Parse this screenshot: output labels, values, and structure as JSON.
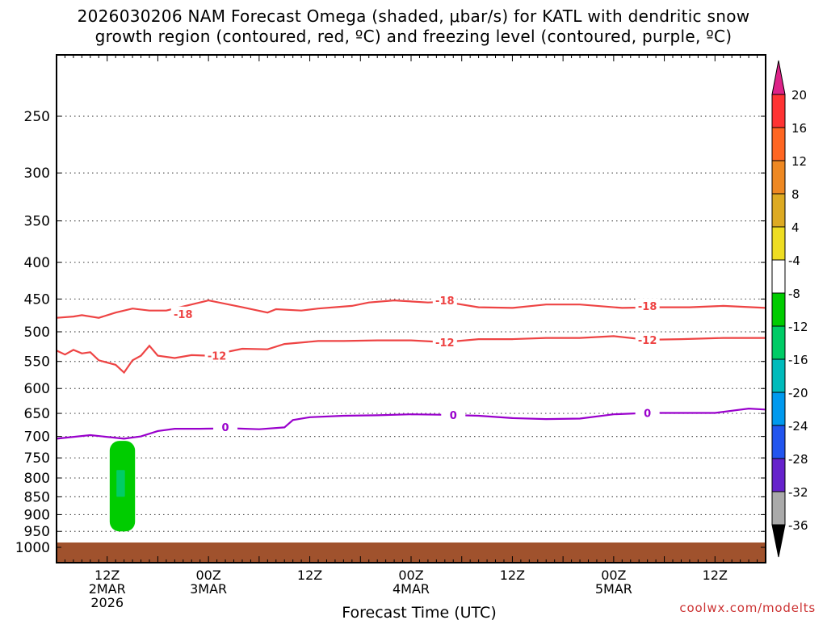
{
  "title_line1": "2026030206 NAM Forecast Omega (shaded, μbar/s) for KATL with dendritic snow",
  "title_line2": "growth region (contoured, red, ºC) and freezing level (contoured, purple, ºC)",
  "credit": "coolwx.com/modelts",
  "chart_data": {
    "type": "time-height cross section",
    "title": "2026030206 NAM Forecast Omega (shaded, μbar/s) for KATL with dendritic snow growth region (contoured, red, ºC) and freezing level (contoured, purple, ºC)",
    "xlabel": "Forecast Time (UTC)",
    "ylabel": "",
    "x_units": "forecast hour",
    "xlim": [
      0,
      84
    ],
    "ylim": [
      1020,
      200
    ],
    "y_scale": "log-pressure (mb)",
    "y_ticks": [
      250,
      300,
      350,
      400,
      450,
      500,
      550,
      600,
      650,
      700,
      750,
      800,
      850,
      900,
      950,
      1000
    ],
    "x_ticks": [
      {
        "hour": 6,
        "lines": [
          "12Z",
          "2MAR",
          "2026"
        ]
      },
      {
        "hour": 18,
        "lines": [
          "00Z",
          "3MAR"
        ]
      },
      {
        "hour": 30,
        "lines": [
          "12Z"
        ]
      },
      {
        "hour": 42,
        "lines": [
          "00Z",
          "4MAR"
        ]
      },
      {
        "hour": 54,
        "lines": [
          "12Z"
        ]
      },
      {
        "hour": 66,
        "lines": [
          "00Z",
          "5MAR"
        ]
      },
      {
        "hour": 78,
        "lines": [
          "12Z"
        ]
      }
    ],
    "grid": "dotted horizontal at pressure ticks",
    "series": [
      {
        "name": "-18 C isotherm",
        "color": "#ee4444",
        "label": "-18",
        "label_hours": [
          [
            15,
            472
          ],
          [
            46,
            452
          ],
          [
            70,
            460
          ]
        ],
        "points": [
          [
            0,
            478
          ],
          [
            2,
            476
          ],
          [
            3,
            474
          ],
          [
            5,
            478
          ],
          [
            7,
            470
          ],
          [
            9,
            464
          ],
          [
            11,
            467
          ],
          [
            13,
            467
          ],
          [
            18,
            452
          ],
          [
            22,
            462
          ],
          [
            25,
            470
          ],
          [
            26,
            465
          ],
          [
            29,
            467
          ],
          [
            31,
            464
          ],
          [
            35,
            460
          ],
          [
            37,
            455
          ],
          [
            40,
            452
          ],
          [
            44,
            455
          ],
          [
            46,
            454
          ],
          [
            50,
            462
          ],
          [
            54,
            463
          ],
          [
            58,
            458
          ],
          [
            62,
            458
          ],
          [
            67,
            463
          ],
          [
            71,
            462
          ],
          [
            75,
            462
          ],
          [
            79,
            460
          ],
          [
            84,
            463
          ]
        ]
      },
      {
        "name": "-12 C isotherm",
        "color": "#ee4444",
        "label": "-12",
        "label_hours": [
          [
            19,
            540
          ],
          [
            46,
            517
          ],
          [
            70,
            513
          ]
        ],
        "points": [
          [
            0,
            531
          ],
          [
            1,
            538
          ],
          [
            2,
            530
          ],
          [
            3,
            536
          ],
          [
            4,
            534
          ],
          [
            5,
            548
          ],
          [
            7,
            556
          ],
          [
            8,
            570
          ],
          [
            9,
            548
          ],
          [
            10,
            540
          ],
          [
            11,
            523
          ],
          [
            12,
            540
          ],
          [
            14,
            544
          ],
          [
            16,
            539
          ],
          [
            18,
            540
          ],
          [
            22,
            528
          ],
          [
            25,
            529
          ],
          [
            27,
            520
          ],
          [
            31,
            515
          ],
          [
            34,
            515
          ],
          [
            38,
            514
          ],
          [
            42,
            514
          ],
          [
            46,
            517
          ],
          [
            50,
            512
          ],
          [
            54,
            512
          ],
          [
            58,
            510
          ],
          [
            62,
            510
          ],
          [
            66,
            507
          ],
          [
            70,
            513
          ],
          [
            74,
            512
          ],
          [
            79,
            510
          ],
          [
            84,
            510
          ]
        ]
      },
      {
        "name": "0 C freezing level",
        "color": "#9900cc",
        "label": "0",
        "label_hours": [
          [
            20,
            679
          ],
          [
            47,
            653
          ],
          [
            70,
            649
          ]
        ],
        "points": [
          [
            0,
            705
          ],
          [
            4,
            697
          ],
          [
            8,
            705
          ],
          [
            10,
            700
          ],
          [
            12,
            688
          ],
          [
            14,
            683
          ],
          [
            17,
            683
          ],
          [
            21,
            682
          ],
          [
            24,
            684
          ],
          [
            27,
            680
          ],
          [
            28,
            664
          ],
          [
            30,
            658
          ],
          [
            34,
            655
          ],
          [
            38,
            654
          ],
          [
            42,
            652
          ],
          [
            46,
            653
          ],
          [
            50,
            655
          ],
          [
            54,
            660
          ],
          [
            58,
            662
          ],
          [
            62,
            661
          ],
          [
            66,
            652
          ],
          [
            70,
            649
          ],
          [
            74,
            649
          ],
          [
            78,
            649
          ],
          [
            82,
            640
          ],
          [
            84,
            642
          ]
        ]
      }
    ],
    "shaded": [
      {
        "name": "omega -4 to -8",
        "color": "#00cc00",
        "hours": [
          6.3,
          9.3
        ],
        "pressure": [
          710,
          950
        ]
      },
      {
        "name": "omega -8 to -12",
        "color": "#00cc66",
        "hours": [
          7.1,
          8.1
        ],
        "pressure": [
          780,
          850
        ]
      }
    ],
    "ground": {
      "color": "#a0522d",
      "from_pressure": 1000
    },
    "colorbar": {
      "levels": [
        "20",
        "16",
        "12",
        "8",
        "4",
        "-4",
        "-8",
        "-12",
        "-16",
        "-20",
        "-24",
        "-28",
        "-32",
        "-36"
      ],
      "colors": [
        "#ff3333",
        "#ff6622",
        "#ee8822",
        "#ddaa22",
        "#eedd22",
        "#ffffff",
        "#00cc00",
        "#00cc66",
        "#00bbbb",
        "#0099ee",
        "#2255ee",
        "#6622cc",
        "#9900cc",
        "#aaaaaa"
      ],
      "top_arrow": "#dd2288",
      "bottom_arrow": "#000000"
    }
  }
}
